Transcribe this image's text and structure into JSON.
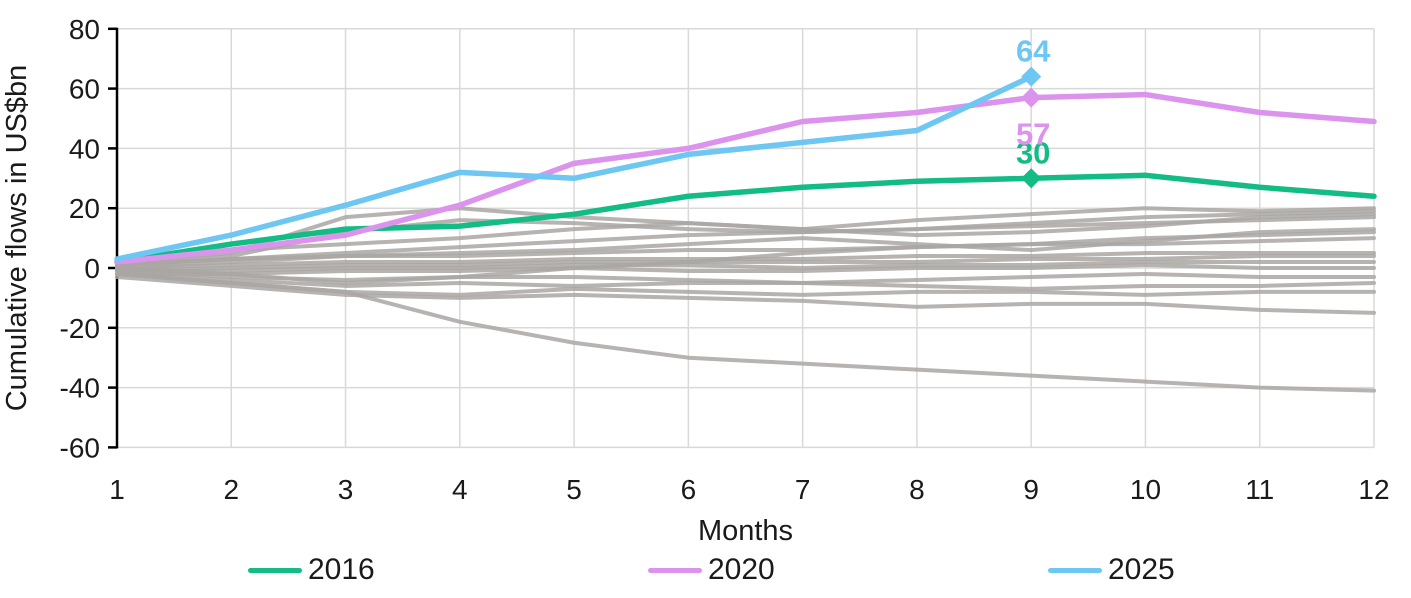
{
  "colors": {
    "background": "#ffffff",
    "gridline": "#d9d9d9",
    "axis": "#000000",
    "text": "#1a1a1a",
    "series_2016": "#12bc84",
    "series_2020": "#dc93ed",
    "series_2025": "#6ec6f2",
    "background_lines": "#a9a6a3"
  },
  "chart_data": {
    "type": "line",
    "title": "",
    "xlabel": "Months",
    "ylabel": "Cumulative flows in US$bn",
    "x": [
      1,
      2,
      3,
      4,
      5,
      6,
      7,
      8,
      9,
      10,
      11,
      12
    ],
    "y_ticks": [
      80,
      60,
      40,
      20,
      0,
      -20,
      -40,
      -60
    ],
    "ylim": [
      -60,
      80
    ],
    "xlim": [
      1,
      12
    ],
    "grid": true,
    "legend_position": "bottom",
    "series": [
      {
        "name": "2016",
        "color": "#12bc84",
        "values": [
          2,
          8,
          13,
          14,
          18,
          24,
          27,
          29,
          30,
          31,
          27,
          24
        ],
        "marker": {
          "month": 9,
          "value": 30,
          "label": "30",
          "label_position": "above"
        }
      },
      {
        "name": "2020",
        "color": "#dc93ed",
        "values": [
          2,
          6,
          11,
          21,
          35,
          40,
          49,
          52,
          57,
          58,
          52,
          49
        ],
        "marker": {
          "month": 9,
          "value": 57,
          "label": "57",
          "label_position": "below"
        }
      },
      {
        "name": "2025",
        "color": "#6ec6f2",
        "values": [
          3,
          11,
          21,
          32,
          30,
          38,
          42,
          46,
          64
        ],
        "marker": {
          "month": 9,
          "value": 64,
          "label": "64",
          "label_position": "above"
        }
      }
    ],
    "background_series": {
      "description": "Unlabeled gray lines for other years (approximate traces)",
      "color": "#a9a6a3",
      "lines": [
        [
          2,
          5,
          17,
          20,
          17,
          15,
          13,
          16,
          18,
          20,
          19,
          20
        ],
        [
          1,
          4,
          12,
          16,
          15,
          13,
          12,
          13,
          15,
          17,
          18,
          19
        ],
        [
          2,
          6,
          8,
          10,
          13,
          15,
          13,
          11,
          12,
          14,
          17,
          18
        ],
        [
          1,
          3,
          5,
          7,
          9,
          11,
          12,
          13,
          14,
          15,
          16,
          17
        ],
        [
          0,
          2,
          4,
          5,
          6,
          8,
          10,
          8,
          6,
          9,
          12,
          13
        ],
        [
          1,
          3,
          4,
          4,
          5,
          6,
          6,
          7,
          8,
          10,
          11,
          12
        ],
        [
          0,
          -2,
          -5,
          -3,
          0,
          2,
          5,
          7,
          8,
          8,
          9,
          10
        ],
        [
          0,
          1,
          2,
          2,
          3,
          3,
          3,
          4,
          4,
          5,
          5,
          5
        ],
        [
          -1,
          0,
          1,
          1,
          2,
          2,
          2,
          2,
          3,
          3,
          4,
          4
        ],
        [
          -1,
          -1,
          0,
          0,
          1,
          1,
          0,
          1,
          1,
          2,
          2,
          2
        ],
        [
          -2,
          -2,
          -1,
          -1,
          0,
          -1,
          -1,
          0,
          0,
          1,
          0,
          0
        ],
        [
          -1,
          -3,
          -4,
          -3,
          -3,
          -4,
          -5,
          -4,
          -3,
          -2,
          -3,
          -3
        ],
        [
          -2,
          -4,
          -6,
          -5,
          -6,
          -5,
          -5,
          -6,
          -7,
          -6,
          -6,
          -5
        ],
        [
          -2,
          -5,
          -8,
          -9,
          -7,
          -8,
          -9,
          -8,
          -8,
          -9,
          -8,
          -8
        ],
        [
          -3,
          -6,
          -9,
          -10,
          -9,
          -10,
          -11,
          -13,
          -12,
          -12,
          -14,
          -15
        ],
        [
          -2,
          -5,
          -8,
          -18,
          -25,
          -30,
          -32,
          -34,
          -36,
          -38,
          -40,
          -41
        ]
      ]
    }
  },
  "legend": {
    "items": [
      {
        "label": "2016"
      },
      {
        "label": "2020"
      },
      {
        "label": "2025"
      }
    ]
  }
}
